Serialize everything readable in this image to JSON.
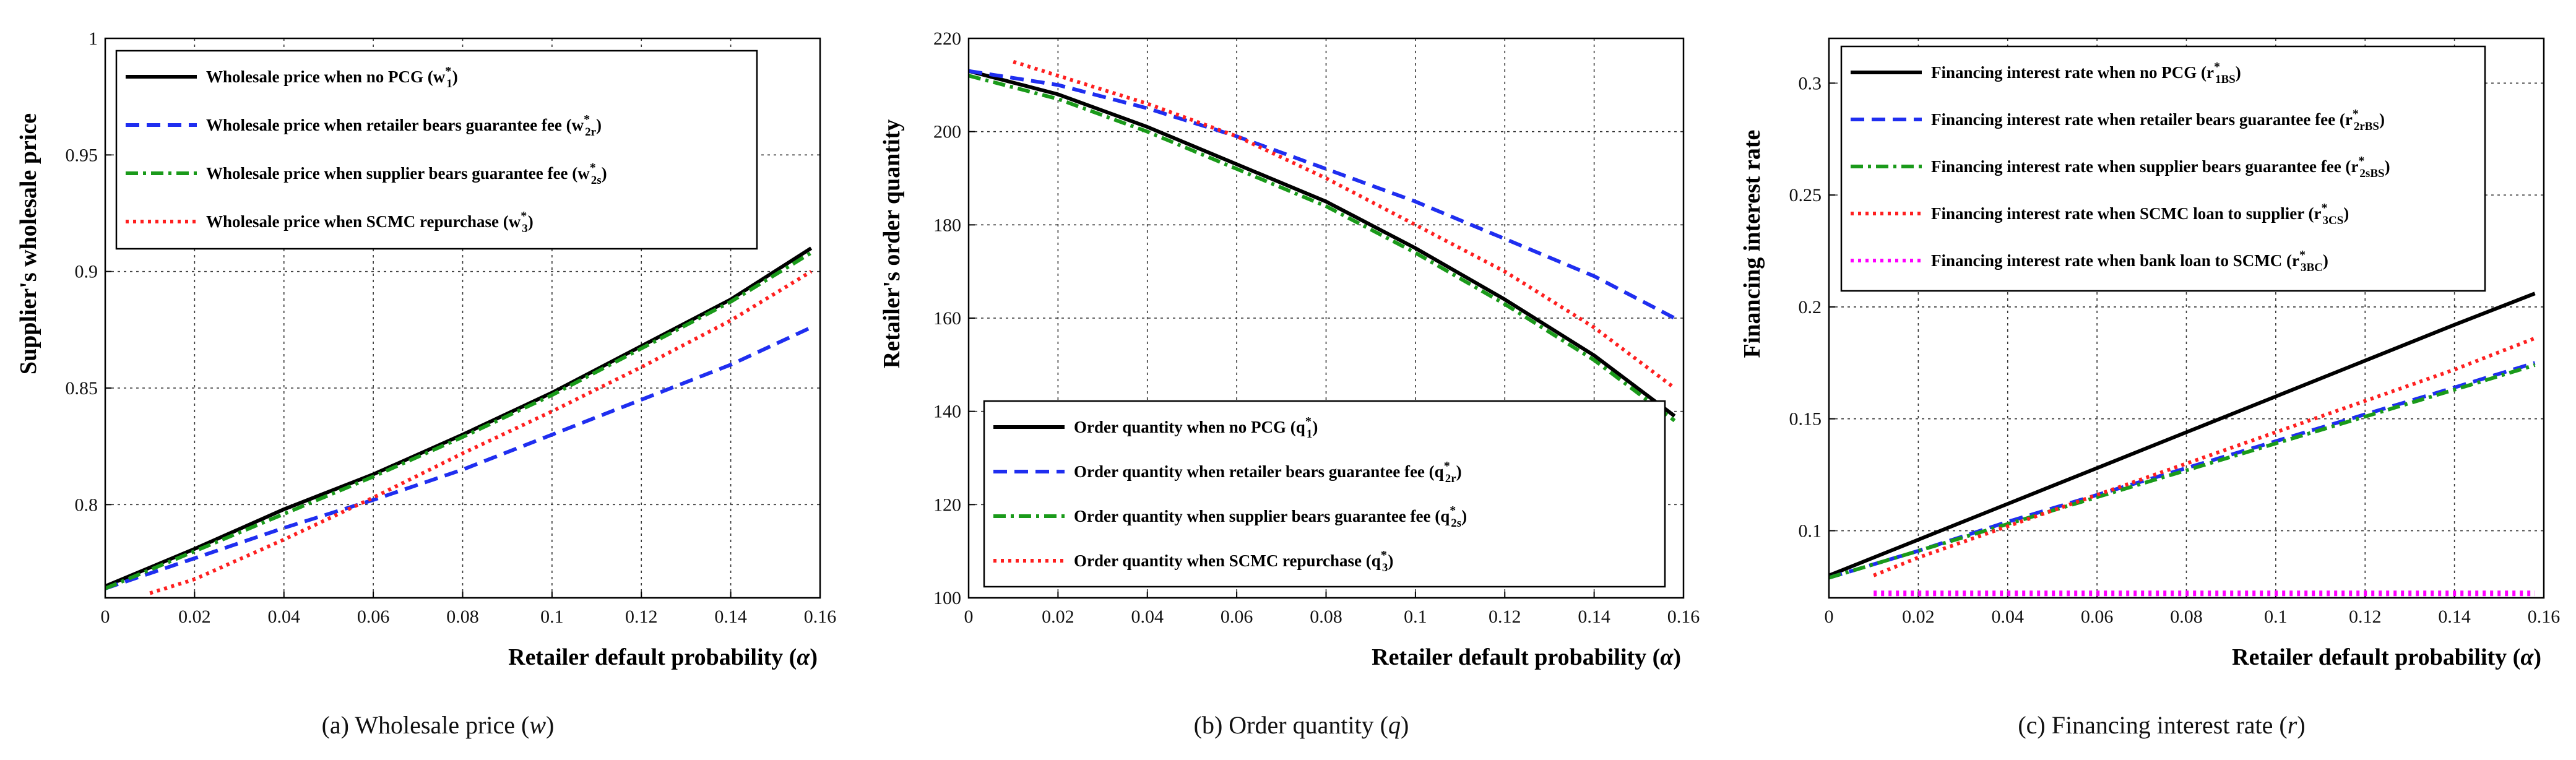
{
  "figure": {
    "panels": [
      {
        "caption_prefix": "(a) Wholesale price",
        "caption_var": "w",
        "xlabel_main": "Retailer default probability",
        "xlabel_sym": "α",
        "ylabel": "Supplier's wholesale price",
        "xticks": [
          "0",
          "0.02",
          "0.04",
          "0.06",
          "0.08",
          "0.1",
          "0.12",
          "0.14",
          "0.16"
        ],
        "yticks": [
          "0.8",
          "0.85",
          "0.9",
          "0.95",
          "1"
        ],
        "legend": [
          {
            "label": "Wholesale price when no PCG",
            "sym": "w",
            "sub": "1"
          },
          {
            "label": "Wholesale price when retailer bears guarantee fee",
            "sym": "w",
            "sub": "2r"
          },
          {
            "label": "Wholesale price when supplier bears guarantee fee",
            "sym": "w",
            "sub": "2s"
          },
          {
            "label": "Wholesale price when SCMC repurchase",
            "sym": "w",
            "sub": "3"
          }
        ]
      },
      {
        "caption_prefix": "(b) Order quantity",
        "caption_var": "q",
        "xlabel_main": "Retailer default probability",
        "xlabel_sym": "α",
        "ylabel": "Retailer's order quantity",
        "xticks": [
          "0",
          "0.02",
          "0.04",
          "0.06",
          "0.08",
          "0.1",
          "0.12",
          "0.14",
          "0.16"
        ],
        "yticks": [
          "100",
          "120",
          "140",
          "160",
          "180",
          "200",
          "220"
        ],
        "legend": [
          {
            "label": "Order quantity when no PCG",
            "sym": "q",
            "sub": "1"
          },
          {
            "label": "Order quantity when retailer bears guarantee fee",
            "sym": "q",
            "sub": "2r"
          },
          {
            "label": "Order quantity when supplier bears guarantee fee",
            "sym": "q",
            "sub": "2s"
          },
          {
            "label": "Order quantity when SCMC repurchase",
            "sym": "q",
            "sub": "3"
          }
        ]
      },
      {
        "caption_prefix": "(c) Financing  interest rate",
        "caption_var": "r",
        "xlabel_main": "Retailer default probability",
        "xlabel_sym": "α",
        "ylabel": "Financing interest rate",
        "xticks": [
          "0",
          "0.02",
          "0.04",
          "0.06",
          "0.08",
          "0.1",
          "0.12",
          "0.14",
          "0.16"
        ],
        "yticks": [
          "0.1",
          "0.15",
          "0.2",
          "0.25",
          "0.3"
        ],
        "legend": [
          {
            "label": "Financing interest rate when no PCG",
            "sym": "r",
            "sub": "1BS"
          },
          {
            "label": "Financing interest rate when retailer bears guarantee fee",
            "sym": "r",
            "sub": "2rBS"
          },
          {
            "label": "Financing interest rate when supplier bears guarantee fee",
            "sym": "r",
            "sub": "2sBS"
          },
          {
            "label": "Financing interest rate when SCMC loan to supplier",
            "sym": "r",
            "sub": "3CS"
          },
          {
            "label": "Financing interest rate when bank loan to SCMC",
            "sym": "r",
            "sub": "3BC"
          }
        ]
      }
    ]
  },
  "style": {
    "colors": {
      "no_pcg": "#000000",
      "retailer": "#1f2ef0",
      "supplier": "#1a9a1a",
      "scmc": "#ff1f1f",
      "bank": "#ff00ff"
    }
  },
  "chart_data": [
    {
      "type": "line",
      "xlabel": "Retailer default probability (α)",
      "ylabel": "Supplier's wholesale price",
      "xlim": [
        0,
        0.16
      ],
      "ylim": [
        0.76,
        1.0
      ],
      "grid": true,
      "legend_position": "top-left",
      "series": [
        {
          "name": "Wholesale price when no PCG (w*1)",
          "color": "#000000",
          "dash": "solid",
          "x": [
            0,
            0.02,
            0.04,
            0.06,
            0.08,
            0.1,
            0.12,
            0.14,
            0.158
          ],
          "y": [
            0.765,
            0.781,
            0.798,
            0.813,
            0.83,
            0.848,
            0.868,
            0.888,
            0.91
          ]
        },
        {
          "name": "Wholesale price when retailer bears guarantee fee (w*2r)",
          "color": "#1f2ef0",
          "dash": "dashed",
          "x": [
            0,
            0.02,
            0.04,
            0.06,
            0.08,
            0.1,
            0.12,
            0.14,
            0.158
          ],
          "y": [
            0.764,
            0.777,
            0.79,
            0.802,
            0.815,
            0.83,
            0.845,
            0.86,
            0.876
          ]
        },
        {
          "name": "Wholesale price when supplier bears guarantee fee (w*2s)",
          "color": "#1a9a1a",
          "dash": "dashdot",
          "x": [
            0,
            0.02,
            0.04,
            0.06,
            0.08,
            0.1,
            0.12,
            0.14,
            0.158
          ],
          "y": [
            0.764,
            0.78,
            0.796,
            0.812,
            0.829,
            0.847,
            0.867,
            0.887,
            0.908
          ]
        },
        {
          "name": "Wholesale price when SCMC repurchase (w*3)",
          "color": "#ff1f1f",
          "dash": "dotted",
          "x": [
            0.01,
            0.02,
            0.04,
            0.06,
            0.08,
            0.1,
            0.12,
            0.14,
            0.158
          ],
          "y": [
            0.762,
            0.768,
            0.785,
            0.803,
            0.822,
            0.84,
            0.859,
            0.879,
            0.9
          ]
        }
      ]
    },
    {
      "type": "line",
      "xlabel": "Retailer default probability (α)",
      "ylabel": "Retailer's order quantity",
      "xlim": [
        0,
        0.16
      ],
      "ylim": [
        100,
        220
      ],
      "grid": true,
      "legend_position": "bottom-left",
      "series": [
        {
          "name": "Order quantity when no PCG (q*1)",
          "color": "#000000",
          "dash": "solid",
          "x": [
            0,
            0.02,
            0.04,
            0.06,
            0.08,
            0.1,
            0.12,
            0.14,
            0.158
          ],
          "y": [
            213,
            208,
            201,
            193,
            185,
            175,
            164,
            152,
            139
          ]
        },
        {
          "name": "Order quantity when retailer bears guarantee fee (q*2r)",
          "color": "#1f2ef0",
          "dash": "dashed",
          "x": [
            0,
            0.02,
            0.04,
            0.06,
            0.08,
            0.1,
            0.12,
            0.14,
            0.158
          ],
          "y": [
            213,
            210,
            205,
            199,
            192,
            185,
            177,
            169,
            160
          ]
        },
        {
          "name": "Order quantity when supplier bears guarantee fee (q*2s)",
          "color": "#1a9a1a",
          "dash": "dashdot",
          "x": [
            0,
            0.02,
            0.04,
            0.06,
            0.08,
            0.1,
            0.12,
            0.14,
            0.158
          ],
          "y": [
            212,
            207,
            200,
            192,
            184,
            174,
            163,
            151,
            138
          ]
        },
        {
          "name": "Order quantity when SCMC repurchase (q*3)",
          "color": "#ff1f1f",
          "dash": "dotted",
          "x": [
            0.01,
            0.02,
            0.04,
            0.06,
            0.08,
            0.1,
            0.12,
            0.14,
            0.158
          ],
          "y": [
            215,
            212,
            206,
            199,
            190,
            180,
            170,
            158,
            145
          ]
        }
      ]
    },
    {
      "type": "line",
      "xlabel": "Retailer default probability (α)",
      "ylabel": "Financing interest rate",
      "xlim": [
        0,
        0.16
      ],
      "ylim": [
        0.07,
        0.32
      ],
      "grid": true,
      "legend_position": "top-left",
      "series": [
        {
          "name": "Financing interest rate when no PCG (r*1BS)",
          "color": "#000000",
          "dash": "solid",
          "x": [
            0,
            0.02,
            0.04,
            0.06,
            0.08,
            0.1,
            0.12,
            0.14,
            0.158
          ],
          "y": [
            0.08,
            0.096,
            0.112,
            0.128,
            0.144,
            0.16,
            0.176,
            0.192,
            0.206
          ]
        },
        {
          "name": "Financing interest rate when retailer bears guarantee fee (r*2rBS)",
          "color": "#1f2ef0",
          "dash": "dashed",
          "x": [
            0,
            0.02,
            0.04,
            0.06,
            0.08,
            0.1,
            0.12,
            0.14,
            0.158
          ],
          "y": [
            0.079,
            0.091,
            0.104,
            0.116,
            0.128,
            0.14,
            0.152,
            0.164,
            0.175
          ]
        },
        {
          "name": "Financing interest rate when supplier bears guarantee fee (r*2sBS)",
          "color": "#1a9a1a",
          "dash": "dashdot",
          "x": [
            0,
            0.02,
            0.04,
            0.06,
            0.08,
            0.1,
            0.12,
            0.14,
            0.158
          ],
          "y": [
            0.079,
            0.091,
            0.103,
            0.115,
            0.127,
            0.139,
            0.151,
            0.163,
            0.174
          ]
        },
        {
          "name": "Financing interest rate when SCMC loan to supplier (r*3CS)",
          "color": "#ff1f1f",
          "dash": "dotted",
          "x": [
            0.01,
            0.02,
            0.04,
            0.06,
            0.08,
            0.1,
            0.12,
            0.14,
            0.158
          ],
          "y": [
            0.08,
            0.088,
            0.102,
            0.116,
            0.13,
            0.144,
            0.158,
            0.172,
            0.186
          ]
        },
        {
          "name": "Financing interest rate when bank loan to SCMC (r*3BC)",
          "color": "#ff00ff",
          "dash": "dotted",
          "x": [
            0.01,
            0.04,
            0.08,
            0.12,
            0.158
          ],
          "y": [
            0.072,
            0.072,
            0.072,
            0.072,
            0.072
          ]
        }
      ]
    }
  ]
}
